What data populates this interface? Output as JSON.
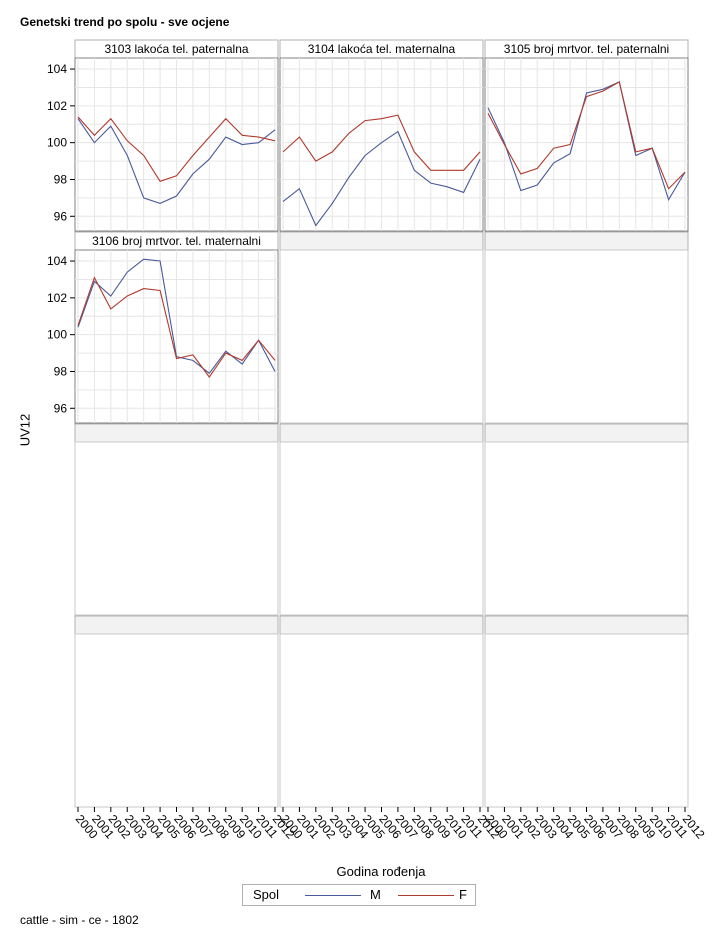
{
  "title": "Genetski trend po spolu - sve ocjene",
  "footnote": "cattle - sim - ce - 1802",
  "colors": {
    "M": "#4a5a9a",
    "F": "#b03a2e"
  },
  "chart_data": {
    "type": "line",
    "title": "Genetski trend po spolu - sve ocjene",
    "xlabel": "Godina rođenja",
    "ylabel": "UV12",
    "x": [
      "2000",
      "2001",
      "2002",
      "2003",
      "2004",
      "2005",
      "2006",
      "2007",
      "2008",
      "2009",
      "2010",
      "2011",
      "2012"
    ],
    "ylim": [
      95.2,
      104.6
    ],
    "yticks": [
      96,
      98,
      100,
      102,
      104
    ],
    "grid": true,
    "legend": {
      "title": "Spol",
      "entries": [
        "M",
        "F"
      ],
      "placement": "bottom"
    },
    "panels": [
      {
        "label": "3103 lakoća tel. paternalna",
        "series": [
          {
            "name": "M",
            "values": [
              101.3,
              100.0,
              100.9,
              99.3,
              97.0,
              96.7,
              97.1,
              98.3,
              99.1,
              100.3,
              99.9,
              100.0,
              100.7
            ]
          },
          {
            "name": "F",
            "values": [
              101.4,
              100.4,
              101.3,
              100.1,
              99.3,
              97.9,
              98.2,
              99.3,
              100.3,
              101.3,
              100.4,
              100.3,
              100.1
            ]
          }
        ]
      },
      {
        "label": "3104 lakoća tel. maternalna",
        "series": [
          {
            "name": "M",
            "values": [
              96.8,
              97.5,
              95.5,
              96.7,
              98.1,
              99.3,
              100.0,
              100.6,
              98.5,
              97.8,
              97.6,
              97.3,
              99.1
            ]
          },
          {
            "name": "F",
            "values": [
              99.5,
              100.3,
              99.0,
              99.5,
              100.5,
              101.2,
              101.3,
              101.5,
              99.5,
              98.5,
              98.5,
              98.5,
              99.5
            ]
          }
        ]
      },
      {
        "label": "3105 broj mrtvor. tel. paternalni",
        "series": [
          {
            "name": "M",
            "values": [
              101.9,
              100.0,
              97.4,
              97.7,
              98.9,
              99.4,
              102.7,
              102.9,
              103.3,
              99.3,
              99.7,
              96.9,
              98.4
            ]
          },
          {
            "name": "F",
            "values": [
              101.6,
              99.9,
              98.3,
              98.6,
              99.7,
              99.9,
              102.5,
              102.8,
              103.3,
              99.5,
              99.7,
              97.5,
              98.4
            ]
          }
        ]
      },
      {
        "label": "3106 broj mrtvor. tel. maternalni",
        "series": [
          {
            "name": "M",
            "values": [
              100.4,
              102.9,
              102.1,
              103.4,
              104.1,
              104.0,
              98.8,
              98.6,
              97.9,
              99.1,
              98.4,
              99.7,
              98.0
            ]
          },
          {
            "name": "F",
            "values": [
              100.5,
              103.1,
              101.4,
              102.1,
              102.5,
              102.4,
              98.7,
              98.9,
              97.7,
              99.0,
              98.6,
              99.7,
              98.6
            ]
          }
        ]
      }
    ]
  }
}
